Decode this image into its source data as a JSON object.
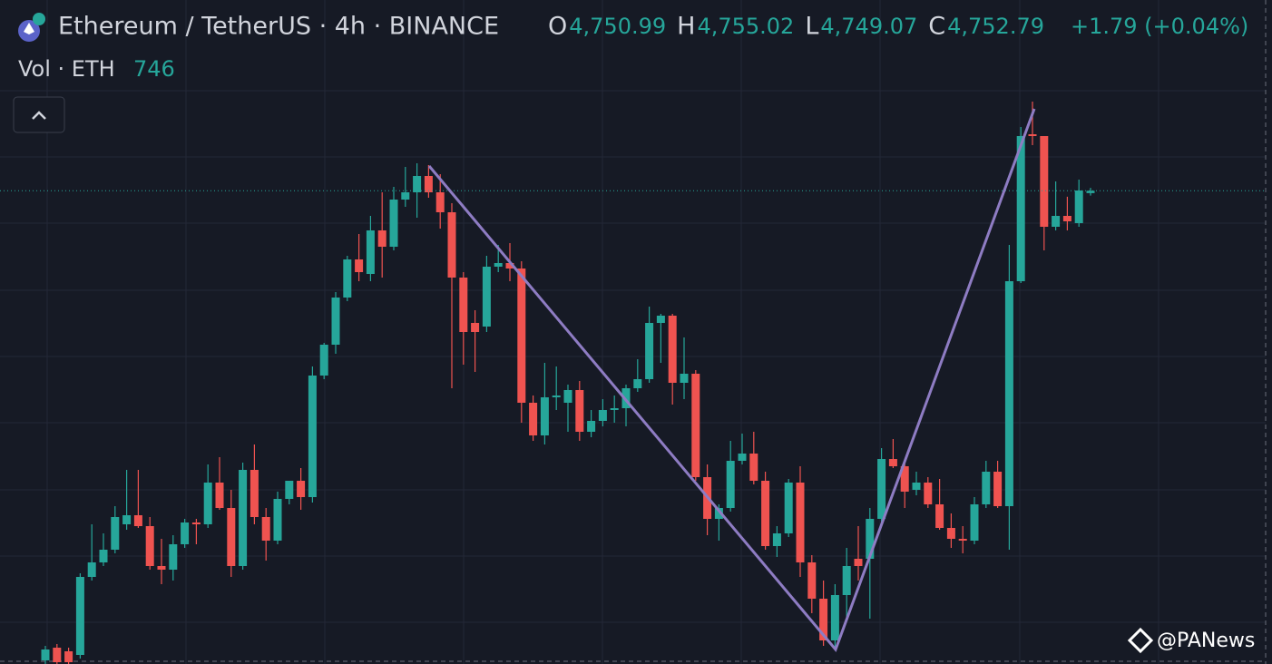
{
  "header": {
    "symbol": "Ethereum / TetherUS · 4h · BINANCE",
    "ohlc": [
      {
        "key": "O",
        "value": "4,750.99"
      },
      {
        "key": "H",
        "value": "4,755.02"
      },
      {
        "key": "L",
        "value": "4,749.07"
      },
      {
        "key": "C",
        "value": "4,752.79"
      }
    ],
    "change": "+1.79 (+0.04%)",
    "volume_label": "Vol · ETH",
    "volume": 746
  },
  "watermark": "@PANews",
  "chart_data": {
    "type": "candlestick",
    "up_color": "#26a69a",
    "down_color": "#ef5350",
    "ylim": [
      4387.6,
      4900
    ],
    "open": [
      4390.4,
      4400.2,
      4397.4,
      4394.6,
      4454.8,
      4466,
      4475.8,
      4495.4,
      4502.4,
      4494,
      4463.2,
      4460.4,
      4480,
      4496.8,
      4495.4,
      4527.6,
      4508,
      4463.2,
      4537.4,
      4501,
      4482.8,
      4515,
      4529,
      4516.4,
      4610.2,
      4634,
      4670.4,
      4699.8,
      4688.6,
      4722.2,
      4709.6,
      4746,
      4751.6,
      4764.2,
      4751.6,
      4736.2,
      4685.8,
      4650.8,
      4648,
      4694.2,
      4697,
      4692.8,
      4589.2,
      4564,
      4593.4,
      4589.2,
      4599,
      4566.8,
      4575.2,
      4583.6,
      4585,
      4600.4,
      4607.4,
      4650.8,
      4656.4,
      4604.6,
      4611.6,
      4531.8,
      4499.6,
      4508,
      4544.4,
      4550,
      4529,
      4478.6,
      4488.4,
      4527.6,
      4466,
      4438,
      4405.8,
      4440.8,
      4468.8,
      4468.8,
      4499.6,
      4545.8,
      4540.2,
      4522,
      4527.6,
      4510.8,
      4492.6,
      4484.2,
      4482.8,
      4510.8,
      4536,
      4509.4,
      4683,
      4796.4,
      4795,
      4725,
      4733.4,
      4727.8,
      4750.99
    ],
    "high": [
      4401.6,
      4403,
      4400.2,
      4457.6,
      4495.4,
      4488.4,
      4509.4,
      4537.4,
      4537.4,
      4501,
      4484.2,
      4487,
      4499.6,
      4499.6,
      4541.6,
      4547.2,
      4522,
      4543,
      4557,
      4508,
      4520.6,
      4529,
      4538.8,
      4617.2,
      4635.4,
      4674.6,
      4702.6,
      4719.4,
      4733.4,
      4751.6,
      4755.8,
      4771.2,
      4774,
      4772.6,
      4765.6,
      4743.2,
      4690,
      4660.6,
      4702.6,
      4711,
      4712.4,
      4698.4,
      4594.8,
      4620,
      4617.2,
      4603.2,
      4606,
      4583.6,
      4592,
      4594.8,
      4603.2,
      4622.8,
      4663.4,
      4657.8,
      4657.8,
      4639.6,
      4614.4,
      4541.6,
      4510.8,
      4559.8,
      4565.4,
      4566.8,
      4536,
      4494,
      4530.4,
      4540.2,
      4471.6,
      4452,
      4449.2,
      4477.2,
      4494,
      4508,
      4554.2,
      4561.2,
      4544.4,
      4536,
      4531.8,
      4530.4,
      4503.8,
      4494,
      4516.4,
      4544.4,
      4544.4,
      4711,
      4802,
      4821.6,
      4795,
      4760,
      4748.2,
      4761.4,
      4755.02
    ],
    "low": [
      4387.6,
      4387.6,
      4387.6,
      4391.8,
      4452,
      4463.2,
      4473,
      4491.2,
      4492.6,
      4460.4,
      4449.2,
      4452,
      4477.2,
      4480,
      4492.6,
      4506.6,
      4454.8,
      4460.4,
      4495.4,
      4467.4,
      4480,
      4510.8,
      4506.6,
      4512.2,
      4607.4,
      4627,
      4667.6,
      4683,
      4683,
      4685.8,
      4706.8,
      4740.4,
      4732,
      4747.4,
      4723.6,
      4600.4,
      4618.6,
      4613,
      4643.8,
      4690,
      4683,
      4573.8,
      4559.8,
      4557,
      4583.6,
      4566.8,
      4559.8,
      4562.6,
      4571,
      4573.8,
      4571,
      4597.6,
      4604.6,
      4620,
      4587.8,
      4592,
      4529,
      4487,
      4482.8,
      4505.2,
      4541.6,
      4526.2,
      4475.8,
      4470.2,
      4485.6,
      4454.8,
      4426.8,
      4401.6,
      4398.8,
      4422.6,
      4452,
      4422.6,
      4496.8,
      4538.8,
      4508,
      4517.8,
      4508,
      4491.2,
      4477.2,
      4473,
      4480,
      4508,
      4508,
      4475.8,
      4681.6,
      4788,
      4706.8,
      4722.2,
      4722.2,
      4725,
      4749.07
    ],
    "close": [
      4398.8,
      4389,
      4389,
      4454.8,
      4466,
      4475.8,
      4501,
      4502.4,
      4494,
      4463.2,
      4460.4,
      4480,
      4496.8,
      4495.4,
      4527.6,
      4508,
      4463.2,
      4537.4,
      4501,
      4482.8,
      4515,
      4529,
      4516.4,
      4610.2,
      4634,
      4670.4,
      4699.8,
      4690,
      4722.2,
      4709.6,
      4746,
      4751.6,
      4764.2,
      4751.6,
      4736.2,
      4685.8,
      4643.8,
      4643.8,
      4694.2,
      4697,
      4692.8,
      4589.2,
      4564,
      4593.4,
      4594.8,
      4599,
      4566.8,
      4575.2,
      4583.6,
      4585,
      4600.4,
      4607.4,
      4650.8,
      4656.4,
      4604.6,
      4611.6,
      4531.8,
      4499.6,
      4508,
      4544.4,
      4550,
      4529,
      4478.6,
      4488.4,
      4527.6,
      4466,
      4438,
      4405.8,
      4440.8,
      4463.2,
      4463.2,
      4499.6,
      4545.8,
      4540.2,
      4520.6,
      4527.6,
      4510.8,
      4492.6,
      4484.2,
      4482.8,
      4510.8,
      4536,
      4509.4,
      4683,
      4795,
      4795,
      4725,
      4733.4,
      4729.2,
      4753,
      4752.79
    ]
  }
}
